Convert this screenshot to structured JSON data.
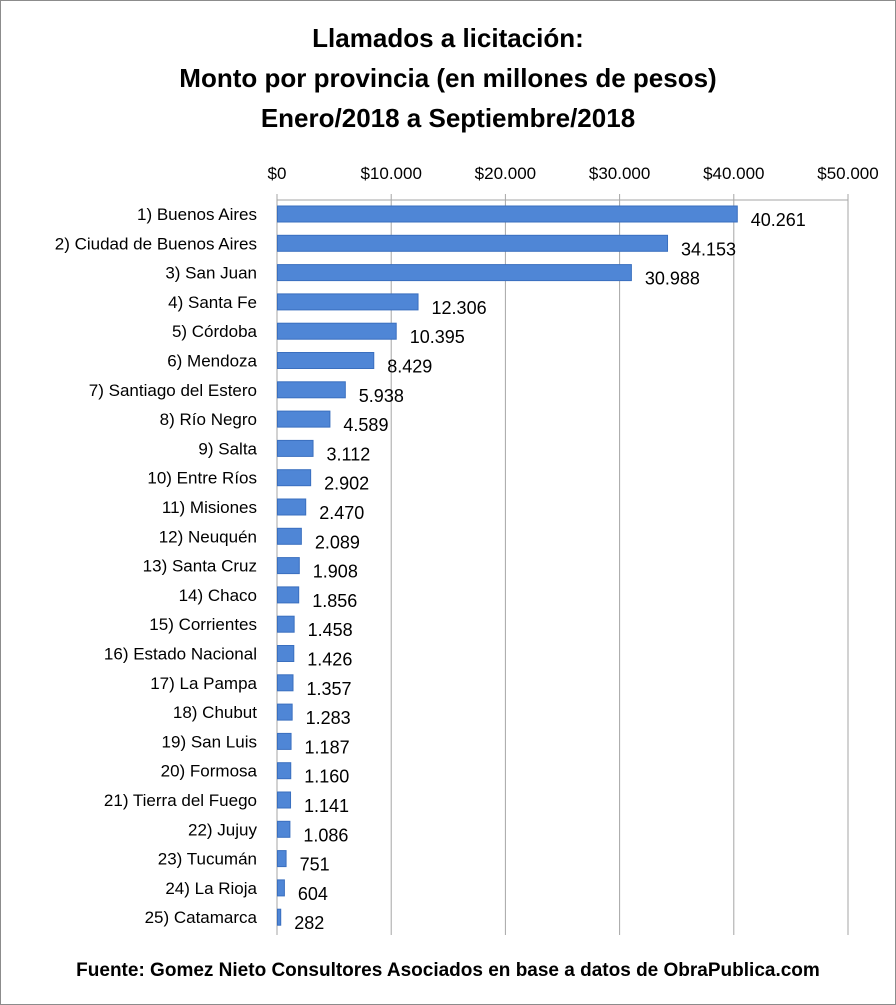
{
  "title_lines": [
    "Llamados a licitación:",
    "Monto por provincia (en millones de pesos)",
    "Enero/2018 a Septiembre/2018"
  ],
  "source": "Fuente: Gomez Nieto Consultores Asociados en base a datos de ObraPublica.com",
  "colors": {
    "bar": "#4f86d6",
    "bar_edge": "#3a6fbf",
    "grid": "#a6a6a6",
    "frame": "#8c8c8c"
  },
  "chart_data": {
    "type": "bar",
    "orientation": "horizontal",
    "x_axis_position": "top",
    "xlim": [
      0,
      50000
    ],
    "x_ticks": [
      0,
      10000,
      20000,
      30000,
      40000,
      50000
    ],
    "x_tick_labels": [
      "$0",
      "$10.000",
      "$20.000",
      "$30.000",
      "$40.000",
      "$50.000"
    ],
    "grid": true,
    "categories": [
      "1) Buenos Aires",
      "2) Ciudad de Buenos Aires",
      "3) San Juan",
      "4) Santa Fe",
      "5) Córdoba",
      "6) Mendoza",
      "7) Santiago del Estero",
      "8) Río Negro",
      "9) Salta",
      "10) Entre Ríos",
      "11) Misiones",
      "12) Neuquén",
      "13) Santa Cruz",
      "14) Chaco",
      "15) Corrientes",
      "16) Estado Nacional",
      "17) La Pampa",
      "18) Chubut",
      "19) San Luis",
      "20) Formosa",
      "21) Tierra del Fuego",
      "22) Jujuy",
      "23) Tucumán",
      "24) La Rioja",
      "25) Catamarca"
    ],
    "values": [
      40261,
      34153,
      30988,
      12306,
      10395,
      8429,
      5938,
      4589,
      3112,
      2902,
      2470,
      2089,
      1908,
      1856,
      1458,
      1426,
      1357,
      1283,
      1187,
      1160,
      1141,
      1086,
      751,
      604,
      282
    ],
    "value_labels": [
      "40.261",
      "34.153",
      "30.988",
      "12.306",
      "10.395",
      "8.429",
      "5.938",
      "4.589",
      "3.112",
      "2.902",
      "2.470",
      "2.089",
      "1.908",
      "1.856",
      "1.458",
      "1.426",
      "1.357",
      "1.283",
      "1.187",
      "1.160",
      "1.141",
      "1.086",
      "751",
      "604",
      "282"
    ]
  }
}
